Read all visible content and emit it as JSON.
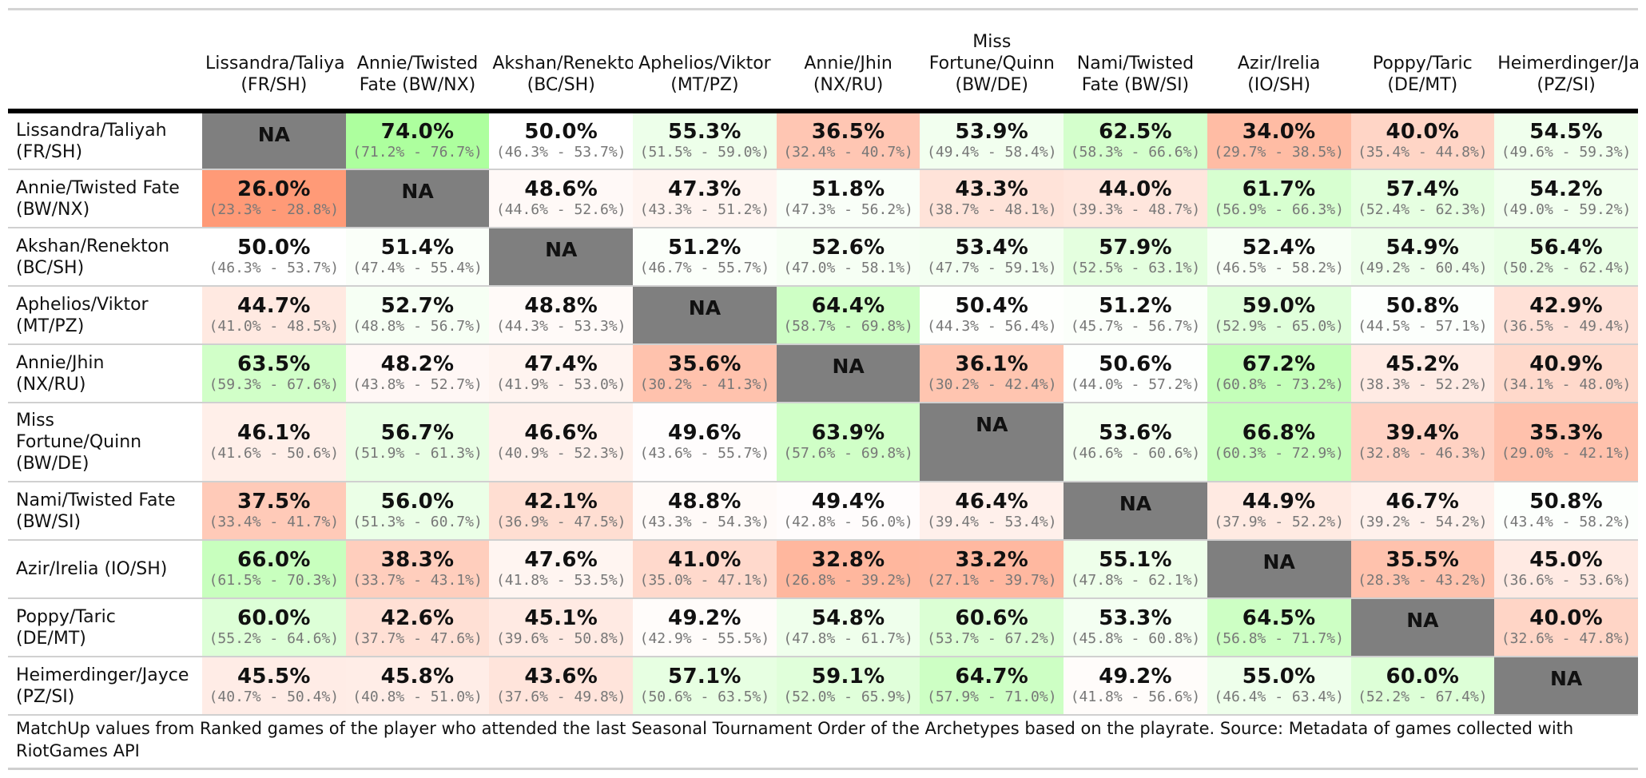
{
  "chart_data": {
    "type": "table",
    "columns": [
      "Lissandra/Taliyah\n(FR/SH)",
      "Annie/Twisted\nFate (BW/NX)",
      "Akshan/Renekton\n(BC/SH)",
      "Aphelios/Viktor\n(MT/PZ)",
      "Annie/Jhin\n(NX/RU)",
      "Miss\nFortune/Quinn\n(BW/DE)",
      "Nami/Twisted\nFate (BW/SI)",
      "Azir/Irelia\n(IO/SH)",
      "Poppy/Taric\n(DE/MT)",
      "Heimerdinger/Jayce\n(PZ/SI)"
    ],
    "rows": [
      {
        "label": "Lissandra/Taliyah\n(FR/SH)",
        "values": [
          null,
          74.0,
          50.0,
          55.3,
          36.5,
          53.9,
          62.5,
          34.0,
          40.0,
          54.5
        ],
        "ci": [
          "",
          "(71.2% - 76.7%)",
          "(46.3% - 53.7%)",
          "(51.5% - 59.0%)",
          "(32.4% - 40.7%)",
          "(49.4% - 58.4%)",
          "(58.3% - 66.6%)",
          "(29.7% - 38.5%)",
          "(35.4% - 44.8%)",
          "(49.6% - 59.3%)"
        ]
      },
      {
        "label": "Annie/Twisted Fate\n(BW/NX)",
        "values": [
          26.0,
          null,
          48.6,
          47.3,
          51.8,
          43.3,
          44.0,
          61.7,
          57.4,
          54.2
        ],
        "ci": [
          "(23.3% - 28.8%)",
          "",
          "(44.6% - 52.6%)",
          "(43.3% - 51.2%)",
          "(47.3% - 56.2%)",
          "(38.7% - 48.1%)",
          "(39.3% - 48.7%)",
          "(56.9% - 66.3%)",
          "(52.4% - 62.3%)",
          "(49.0% - 59.2%)"
        ]
      },
      {
        "label": "Akshan/Renekton\n(BC/SH)",
        "values": [
          50.0,
          51.4,
          null,
          51.2,
          52.6,
          53.4,
          57.9,
          52.4,
          54.9,
          56.4
        ],
        "ci": [
          "(46.3% - 53.7%)",
          "(47.4% - 55.4%)",
          "",
          "(46.7% - 55.7%)",
          "(47.0% - 58.1%)",
          "(47.7% - 59.1%)",
          "(52.5% - 63.1%)",
          "(46.5% - 58.2%)",
          "(49.2% - 60.4%)",
          "(50.2% - 62.4%)"
        ]
      },
      {
        "label": "Aphelios/Viktor\n(MT/PZ)",
        "values": [
          44.7,
          52.7,
          48.8,
          null,
          64.4,
          50.4,
          51.2,
          59.0,
          50.8,
          42.9
        ],
        "ci": [
          "(41.0% - 48.5%)",
          "(48.8% - 56.7%)",
          "(44.3% - 53.3%)",
          "",
          "(58.7% - 69.8%)",
          "(44.3% - 56.4%)",
          "(45.7% - 56.7%)",
          "(52.9% - 65.0%)",
          "(44.5% - 57.1%)",
          "(36.5% - 49.4%)"
        ]
      },
      {
        "label": "Annie/Jhin\n(NX/RU)",
        "values": [
          63.5,
          48.2,
          47.4,
          35.6,
          null,
          36.1,
          50.6,
          67.2,
          45.2,
          40.9
        ],
        "ci": [
          "(59.3% - 67.6%)",
          "(43.8% - 52.7%)",
          "(41.9% - 53.0%)",
          "(30.2% - 41.3%)",
          "",
          "(30.2% - 42.4%)",
          "(44.0% - 57.2%)",
          "(60.8% - 73.2%)",
          "(38.3% - 52.2%)",
          "(34.1% - 48.0%)"
        ]
      },
      {
        "label": "Miss\nFortune/Quinn\n(BW/DE)",
        "values": [
          46.1,
          56.7,
          46.6,
          49.6,
          63.9,
          null,
          53.6,
          66.8,
          39.4,
          35.3
        ],
        "ci": [
          "(41.6% - 50.6%)",
          "(51.9% - 61.3%)",
          "(40.9% - 52.3%)",
          "(43.6% - 55.7%)",
          "(57.6% - 69.8%)",
          "",
          "(46.6% - 60.6%)",
          "(60.3% - 72.9%)",
          "(32.8% - 46.3%)",
          "(29.0% - 42.1%)"
        ]
      },
      {
        "label": "Nami/Twisted Fate\n(BW/SI)",
        "values": [
          37.5,
          56.0,
          42.1,
          48.8,
          49.4,
          46.4,
          null,
          44.9,
          46.7,
          50.8
        ],
        "ci": [
          "(33.4% - 41.7%)",
          "(51.3% - 60.7%)",
          "(36.9% - 47.5%)",
          "(43.3% - 54.3%)",
          "(42.8% - 56.0%)",
          "(39.4% - 53.4%)",
          "",
          "(37.9% - 52.2%)",
          "(39.2% - 54.2%)",
          "(43.4% - 58.2%)"
        ]
      },
      {
        "label": "Azir/Irelia (IO/SH)",
        "values": [
          66.0,
          38.3,
          47.6,
          41.0,
          32.8,
          33.2,
          55.1,
          null,
          35.5,
          45.0
        ],
        "ci": [
          "(61.5% - 70.3%)",
          "(33.7% - 43.1%)",
          "(41.8% - 53.5%)",
          "(35.0% - 47.1%)",
          "(26.8% - 39.2%)",
          "(27.1% - 39.7%)",
          "(47.8% - 62.1%)",
          "",
          "(28.3% - 43.2%)",
          "(36.6% - 53.6%)"
        ]
      },
      {
        "label": "Poppy/Taric\n(DE/MT)",
        "values": [
          60.0,
          42.6,
          45.1,
          49.2,
          54.8,
          60.6,
          53.3,
          64.5,
          null,
          40.0
        ],
        "ci": [
          "(55.2% - 64.6%)",
          "(37.7% - 47.6%)",
          "(39.6% - 50.8%)",
          "(42.9% - 55.5%)",
          "(47.8% - 61.7%)",
          "(53.7% - 67.2%)",
          "(45.8% - 60.8%)",
          "(56.8% - 71.7%)",
          "",
          "(32.6% - 47.8%)"
        ]
      },
      {
        "label": "Heimerdinger/Jayce\n(PZ/SI)",
        "values": [
          45.5,
          45.8,
          43.6,
          57.1,
          59.1,
          64.7,
          49.2,
          55.0,
          60.0,
          null
        ],
        "ci": [
          "(40.7% - 50.4%)",
          "(40.8% - 51.0%)",
          "(37.6% - 49.8%)",
          "(50.6% - 63.5%)",
          "(52.0% - 65.9%)",
          "(57.9% - 71.0%)",
          "(41.8% - 56.6%)",
          "(46.4% - 63.4%)",
          "(52.2% - 67.4%)",
          ""
        ]
      }
    ],
    "na_label": "NA",
    "colors": {
      "low": "#ff9a77",
      "mid": "#ffffff",
      "high": "#adff9e",
      "na": "#7f7f7f"
    },
    "color_scale_range": [
      26.0,
      74.0
    ],
    "grid": false
  },
  "footer": {
    "note": "MatchUp values from Ranked games of the player who attended the last Seasonal Tournament Order of the Archetypes based on the playrate. Source: Metadata of games collected with RiotGames API"
  }
}
